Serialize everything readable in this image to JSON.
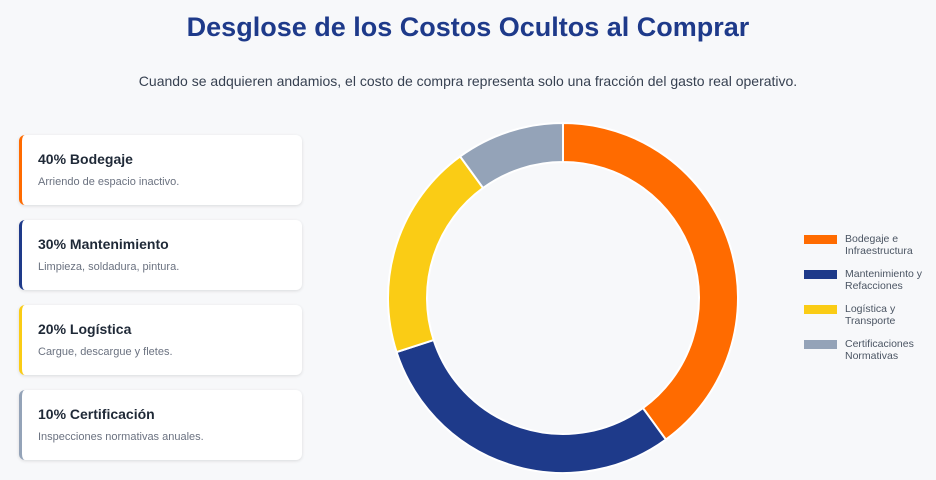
{
  "header": {
    "title": "Desglose de los Costos Ocultos al Comprar",
    "subtitle": "Cuando se adquieren andamios, el costo de compra representa solo una fracción del gasto real operativo."
  },
  "cards": [
    {
      "title": "40% Bodegaje",
      "desc": "Arriendo de espacio inactivo.",
      "color": "#ff6b00"
    },
    {
      "title": "30% Mantenimiento",
      "desc": "Limpieza, soldadura, pintura.",
      "color": "#1e3a8a"
    },
    {
      "title": "20% Logística",
      "desc": "Cargue, descargue y fletes.",
      "color": "#facc15"
    },
    {
      "title": "10% Certificación",
      "desc": "Inspecciones normativas anuales.",
      "color": "#94a3b8"
    }
  ],
  "chart_data": {
    "type": "doughnut",
    "categories": [
      "Bodegaje e Infraestructura",
      "Mantenimiento y Refacciones",
      "Logística y Transporte",
      "Certificaciones Normativas"
    ],
    "values": [
      40,
      30,
      20,
      10
    ],
    "colors": [
      "#ff6b00",
      "#1e3a8a",
      "#facc15",
      "#94a3b8"
    ],
    "legend": "right"
  }
}
